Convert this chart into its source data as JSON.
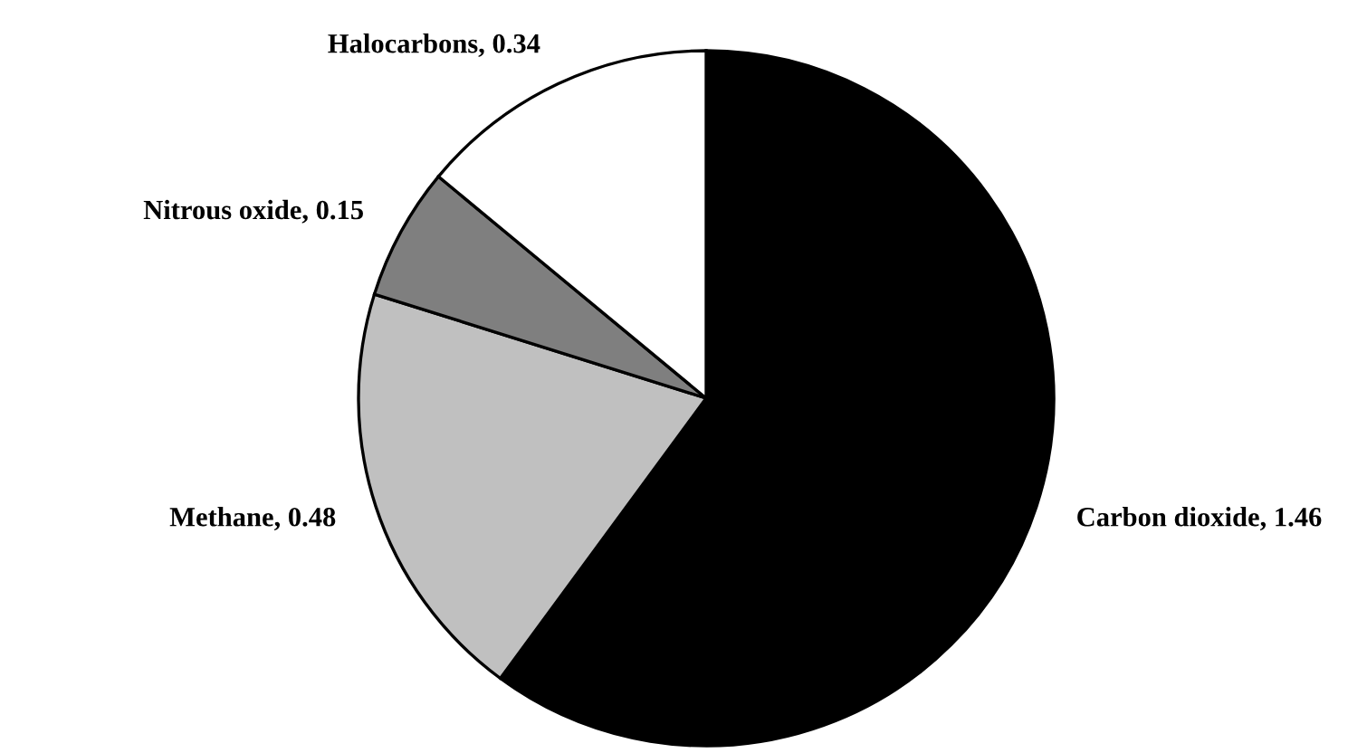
{
  "chart_data": {
    "type": "pie",
    "categories": [
      "Carbon dioxide",
      "Methane",
      "Nitrous oxide",
      "Halocarbons"
    ],
    "values": [
      1.46,
      0.48,
      0.15,
      0.34
    ],
    "value_labels": [
      "1.46",
      "0.48",
      "0.15",
      "0.34"
    ],
    "colors": [
      "#000000",
      "#c0c0c0",
      "#7f7f7f",
      "#ffffff"
    ]
  }
}
